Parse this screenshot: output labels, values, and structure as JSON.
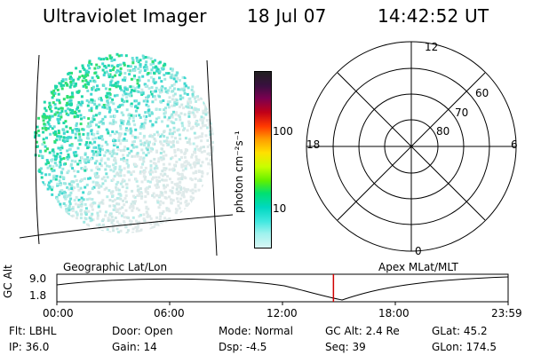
{
  "header": {
    "instrument": "Ultraviolet Imager",
    "date": "18 Jul 07",
    "time": "14:42:52 UT"
  },
  "colorbar": {
    "label": "photon cm⁻²s⁻¹",
    "ticks": [
      "100",
      "10"
    ],
    "colors": [
      "#202020",
      "#3a1040",
      "#7a0050",
      "#c00018",
      "#ff3a00",
      "#ff9a00",
      "#ffe000",
      "#c8ff00",
      "#60f000",
      "#00e070",
      "#00d8c0",
      "#40e8e0",
      "#9ff2ee",
      "#d8f6f4"
    ]
  },
  "polar": {
    "mlt_labels": [
      "12",
      "18",
      "6",
      "0"
    ],
    "lat_labels": [
      "60",
      "70",
      "80"
    ]
  },
  "panel_labels": {
    "left": "Geographic Lat/Lon",
    "right": "Apex MLat/MLT"
  },
  "alt_plot": {
    "ylabel": "GC Alt",
    "yticks": [
      "9.0",
      "1.8"
    ],
    "xticks": [
      "00:00",
      "06:00",
      "12:00",
      "18:00",
      "23:59"
    ],
    "marker_hour": 14.71,
    "marker_color": "#d00000"
  },
  "info": {
    "row1": [
      {
        "k": "Flt:",
        "v": "LBHL"
      },
      {
        "k": "Door:",
        "v": "Open"
      },
      {
        "k": "Mode:",
        "v": "Normal"
      },
      {
        "k": "GC Alt:",
        "v": "2.4 Re"
      },
      {
        "k": "GLat:",
        "v": "45.2"
      }
    ],
    "row2": [
      {
        "k": "IP:",
        "v": "36.0"
      },
      {
        "k": "Gain:",
        "v": "14"
      },
      {
        "k": "Dsp:",
        "v": "-4.5"
      },
      {
        "k": "Seq:",
        "v": "39"
      },
      {
        "k": "GLon:",
        "v": "174.5"
      }
    ]
  }
}
